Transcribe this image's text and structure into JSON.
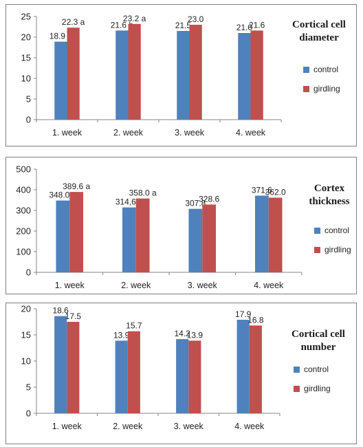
{
  "colors": {
    "control": "#4f81bd",
    "girdling": "#c0504d"
  },
  "chart_data": [
    {
      "type": "bar",
      "title": [
        "Cortical cell",
        "diameter"
      ],
      "categories": [
        "1. week",
        "2. week",
        "3. week",
        "4. week"
      ],
      "ylim": [
        0,
        25
      ],
      "yticks": [
        "0",
        "5",
        "10",
        "15",
        "20",
        "25"
      ],
      "grid": false,
      "legend_position": "right",
      "series": [
        {
          "name": "control",
          "values": [
            18.9,
            21.6,
            21.5,
            21.0
          ],
          "labels": [
            "18.9 b",
            "21.6 b",
            "21.5",
            "21.0"
          ]
        },
        {
          "name": "girdling",
          "values": [
            22.3,
            23.2,
            23.0,
            21.6
          ],
          "labels": [
            "22.3 a",
            "23.2 a",
            "23.0",
            "21.6"
          ]
        }
      ]
    },
    {
      "type": "bar",
      "title": [
        "Cortex",
        "thickness"
      ],
      "categories": [
        "1. week",
        "2. week",
        "3. week",
        "4. week"
      ],
      "ylim": [
        0,
        500
      ],
      "yticks": [
        "0",
        "100",
        "200",
        "300",
        "400",
        "500"
      ],
      "grid": false,
      "legend_position": "right",
      "series": [
        {
          "name": "control",
          "values": [
            348.0,
            314.6,
            307.8,
            371.6
          ],
          "labels": [
            "348.0 b",
            "314,6 b",
            "307.8",
            "371.6"
          ]
        },
        {
          "name": "girdling",
          "values": [
            389.6,
            358.0,
            328.6,
            362.0
          ],
          "labels": [
            "389.6 a",
            "358.0 a",
            "328.6",
            "362.0"
          ]
        }
      ]
    },
    {
      "type": "bar",
      "title": [
        "Cortical cell",
        "number"
      ],
      "categories": [
        "1. week",
        "2. week",
        "3. week",
        "4. week"
      ],
      "ylim": [
        0,
        20
      ],
      "yticks": [
        "0",
        "5",
        "10",
        "15",
        "20"
      ],
      "grid": false,
      "legend_position": "right",
      "series": [
        {
          "name": "control",
          "values": [
            18.6,
            13.9,
            14.2,
            17.9
          ],
          "labels": [
            "18.6",
            "13.9",
            "14.2",
            "17.9"
          ]
        },
        {
          "name": "girdling",
          "values": [
            17.5,
            15.7,
            13.9,
            16.8
          ],
          "labels": [
            "17.5",
            "15.7",
            "13.9",
            "16.8"
          ]
        }
      ]
    }
  ]
}
